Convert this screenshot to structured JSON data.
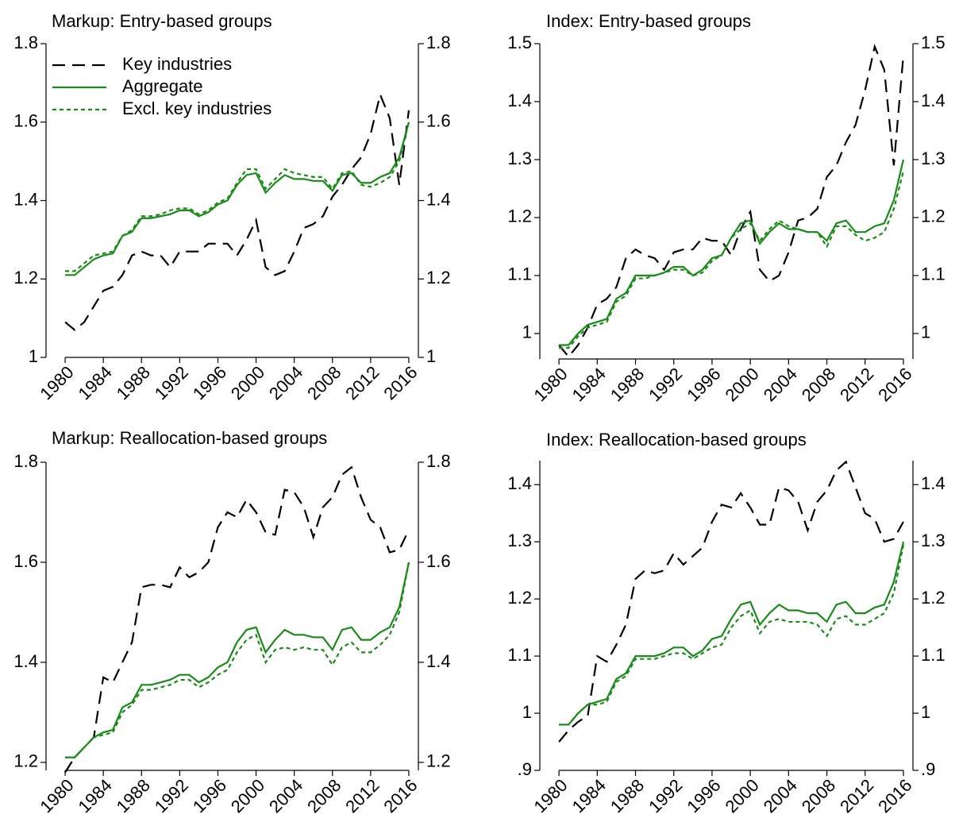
{
  "chart_data": [
    {
      "type": "line",
      "title": "Markup: Entry-based groups",
      "x": [
        1980,
        1981,
        1982,
        1983,
        1984,
        1985,
        1986,
        1987,
        1988,
        1989,
        1990,
        1991,
        1992,
        1993,
        1994,
        1995,
        1996,
        1997,
        1998,
        1999,
        2000,
        2001,
        2002,
        2003,
        2004,
        2005,
        2006,
        2007,
        2008,
        2009,
        2010,
        2011,
        2012,
        2013,
        2014,
        2015,
        2016
      ],
      "xlim": [
        1978,
        2017
      ],
      "xticks": [
        1980,
        1984,
        1988,
        1992,
        1996,
        2000,
        2004,
        2008,
        2012,
        2016
      ],
      "ylim": [
        1,
        1.8
      ],
      "yticks": [
        1,
        1.2,
        1.4,
        1.6,
        1.8
      ],
      "y2lim": [
        1,
        1.8
      ],
      "y2ticks": [
        1,
        1.2,
        1.4,
        1.6,
        1.8
      ],
      "legend": "upper left",
      "series": [
        {
          "name": "Key industries",
          "color": "#000000",
          "line_style": "long-dash",
          "values": [
            1.09,
            1.07,
            1.09,
            1.13,
            1.17,
            1.18,
            1.21,
            1.26,
            1.27,
            1.26,
            1.26,
            1.23,
            1.27,
            1.27,
            1.27,
            1.29,
            1.29,
            1.29,
            1.26,
            1.3,
            1.35,
            1.23,
            1.21,
            1.22,
            1.27,
            1.33,
            1.34,
            1.36,
            1.41,
            1.44,
            1.48,
            1.51,
            1.57,
            1.67,
            1.61,
            1.44,
            1.63
          ]
        },
        {
          "name": "Aggregate",
          "color": "#1a8a1a",
          "line_style": "solid",
          "values": [
            1.21,
            1.21,
            1.23,
            1.25,
            1.26,
            1.265,
            1.31,
            1.32,
            1.355,
            1.355,
            1.36,
            1.365,
            1.375,
            1.375,
            1.36,
            1.37,
            1.39,
            1.4,
            1.44,
            1.465,
            1.47,
            1.42,
            1.445,
            1.465,
            1.455,
            1.455,
            1.45,
            1.45,
            1.425,
            1.465,
            1.47,
            1.445,
            1.445,
            1.46,
            1.47,
            1.51,
            1.6
          ]
        },
        {
          "name": "Excl. key industries",
          "color": "#1a8a1a",
          "line_style": "short-dash",
          "values": [
            1.22,
            1.22,
            1.24,
            1.26,
            1.265,
            1.27,
            1.31,
            1.325,
            1.36,
            1.36,
            1.365,
            1.375,
            1.38,
            1.38,
            1.365,
            1.375,
            1.395,
            1.405,
            1.445,
            1.48,
            1.48,
            1.43,
            1.455,
            1.48,
            1.47,
            1.465,
            1.46,
            1.46,
            1.43,
            1.47,
            1.475,
            1.44,
            1.435,
            1.445,
            1.46,
            1.5,
            1.6
          ]
        }
      ]
    },
    {
      "type": "line",
      "title": "Index: Entry-based groups",
      "x": [
        1980,
        1981,
        1982,
        1983,
        1984,
        1985,
        1986,
        1987,
        1988,
        1989,
        1990,
        1991,
        1992,
        1993,
        1994,
        1995,
        1996,
        1997,
        1998,
        1999,
        2000,
        2001,
        2002,
        2003,
        2004,
        2005,
        2006,
        2007,
        2008,
        2009,
        2010,
        2011,
        2012,
        2013,
        2014,
        2015,
        2016
      ],
      "xlim": [
        1978,
        2017
      ],
      "xticks": [
        1980,
        1984,
        1988,
        1992,
        1996,
        2000,
        2004,
        2008,
        2012,
        2016
      ],
      "ylim": [
        0.956,
        1.5
      ],
      "yticks": [
        1,
        1.1,
        1.2,
        1.3,
        1.4,
        1.5
      ],
      "y2lim": [
        0.956,
        1.5
      ],
      "y2ticks": [
        1,
        1.1,
        1.2,
        1.3,
        1.4,
        1.5
      ],
      "series": [
        {
          "color": "#000000",
          "line_style": "long-dash",
          "values": [
            0.98,
            0.96,
            0.98,
            1.01,
            1.05,
            1.06,
            1.08,
            1.13,
            1.145,
            1.135,
            1.13,
            1.11,
            1.14,
            1.145,
            1.145,
            1.165,
            1.16,
            1.16,
            1.135,
            1.18,
            1.21,
            1.11,
            1.09,
            1.1,
            1.14,
            1.195,
            1.2,
            1.215,
            1.27,
            1.29,
            1.33,
            1.36,
            1.42,
            1.495,
            1.455,
            1.29,
            1.48
          ]
        },
        {
          "color": "#1a8a1a",
          "line_style": "solid",
          "values": [
            0.98,
            0.98,
            1.0,
            1.015,
            1.02,
            1.025,
            1.06,
            1.07,
            1.1,
            1.1,
            1.1,
            1.105,
            1.115,
            1.115,
            1.1,
            1.11,
            1.13,
            1.135,
            1.165,
            1.19,
            1.195,
            1.155,
            1.175,
            1.19,
            1.18,
            1.18,
            1.175,
            1.175,
            1.16,
            1.19,
            1.195,
            1.175,
            1.175,
            1.185,
            1.19,
            1.23,
            1.3
          ]
        },
        {
          "color": "#1a8a1a",
          "line_style": "short-dash",
          "values": [
            0.975,
            0.975,
            0.995,
            1.01,
            1.015,
            1.02,
            1.055,
            1.065,
            1.095,
            1.095,
            1.1,
            1.105,
            1.11,
            1.11,
            1.1,
            1.105,
            1.125,
            1.135,
            1.165,
            1.18,
            1.19,
            1.16,
            1.18,
            1.195,
            1.185,
            1.18,
            1.175,
            1.175,
            1.15,
            1.185,
            1.185,
            1.17,
            1.16,
            1.165,
            1.175,
            1.215,
            1.28
          ]
        }
      ]
    },
    {
      "type": "line",
      "title": "Markup: Reallocation-based groups",
      "x": [
        1980,
        1981,
        1982,
        1983,
        1984,
        1985,
        1986,
        1987,
        1988,
        1989,
        1990,
        1991,
        1992,
        1993,
        1994,
        1995,
        1996,
        1997,
        1998,
        1999,
        2000,
        2001,
        2002,
        2003,
        2004,
        2005,
        2006,
        2007,
        2008,
        2009,
        2010,
        2011,
        2012,
        2013,
        2014,
        2015,
        2016
      ],
      "xlim": [
        1978,
        2017
      ],
      "xticks": [
        1980,
        1984,
        1988,
        1992,
        1996,
        2000,
        2004,
        2008,
        2012,
        2016
      ],
      "ylim": [
        1.184,
        1.8
      ],
      "yticks": [
        1.2,
        1.4,
        1.6,
        1.8
      ],
      "y2lim": [
        1.184,
        1.8
      ],
      "y2ticks": [
        1.2,
        1.4,
        1.6,
        1.8
      ],
      "series": [
        {
          "color": "#000000",
          "line_style": "long-dash",
          "values": [
            1.18,
            1.21,
            1.23,
            1.25,
            1.37,
            1.36,
            1.4,
            1.44,
            1.55,
            1.555,
            1.555,
            1.55,
            1.59,
            1.57,
            1.58,
            1.6,
            1.67,
            1.7,
            1.69,
            1.725,
            1.7,
            1.66,
            1.655,
            1.745,
            1.74,
            1.71,
            1.65,
            1.71,
            1.73,
            1.775,
            1.79,
            1.73,
            1.685,
            1.67,
            1.62,
            1.625,
            1.665
          ]
        },
        {
          "color": "#1a8a1a",
          "line_style": "solid",
          "values": [
            1.21,
            1.21,
            1.23,
            1.25,
            1.26,
            1.265,
            1.31,
            1.32,
            1.355,
            1.355,
            1.36,
            1.365,
            1.375,
            1.375,
            1.36,
            1.37,
            1.39,
            1.4,
            1.44,
            1.465,
            1.47,
            1.42,
            1.445,
            1.465,
            1.455,
            1.455,
            1.45,
            1.45,
            1.425,
            1.465,
            1.47,
            1.445,
            1.445,
            1.46,
            1.47,
            1.51,
            1.6
          ]
        },
        {
          "color": "#1a8a1a",
          "line_style": "short-dash",
          "values": [
            1.21,
            1.21,
            1.23,
            1.25,
            1.255,
            1.26,
            1.3,
            1.315,
            1.345,
            1.345,
            1.35,
            1.355,
            1.365,
            1.365,
            1.35,
            1.36,
            1.375,
            1.385,
            1.42,
            1.445,
            1.455,
            1.4,
            1.425,
            1.43,
            1.425,
            1.43,
            1.425,
            1.425,
            1.395,
            1.43,
            1.44,
            1.42,
            1.42,
            1.435,
            1.455,
            1.5,
            1.6
          ]
        }
      ]
    },
    {
      "type": "line",
      "title": "Index: Reallocation-based groups",
      "x": [
        1980,
        1981,
        1982,
        1983,
        1984,
        1985,
        1986,
        1987,
        1988,
        1989,
        1990,
        1991,
        1992,
        1993,
        1994,
        1995,
        1996,
        1997,
        1998,
        1999,
        2000,
        2001,
        2002,
        2003,
        2004,
        2005,
        2006,
        2007,
        2008,
        2009,
        2010,
        2011,
        2012,
        2013,
        2014,
        2015,
        2016
      ],
      "xlim": [
        1978,
        2017
      ],
      "xticks": [
        1980,
        1984,
        1988,
        1992,
        1996,
        2000,
        2004,
        2008,
        2012,
        2016
      ],
      "ylim": [
        0.9,
        1.442
      ],
      "yticks": [
        {
          "value": 0.9,
          "label": ".9"
        },
        1,
        1.1,
        1.2,
        1.3,
        1.4
      ],
      "y2lim": [
        0.9,
        1.442
      ],
      "y2ticks": [
        {
          "value": 0.9,
          "label": ".9"
        },
        1,
        1.1,
        1.2,
        1.3,
        1.4
      ],
      "series": [
        {
          "color": "#000000",
          "line_style": "long-dash",
          "values": [
            0.95,
            0.97,
            0.985,
            0.995,
            1.1,
            1.09,
            1.12,
            1.155,
            1.235,
            1.25,
            1.245,
            1.25,
            1.28,
            1.26,
            1.275,
            1.29,
            1.335,
            1.365,
            1.36,
            1.385,
            1.36,
            1.33,
            1.33,
            1.395,
            1.39,
            1.37,
            1.32,
            1.37,
            1.39,
            1.425,
            1.44,
            1.395,
            1.35,
            1.34,
            1.3,
            1.305,
            1.335
          ]
        },
        {
          "color": "#1a8a1a",
          "line_style": "solid",
          "values": [
            0.98,
            0.98,
            1.0,
            1.015,
            1.02,
            1.025,
            1.06,
            1.07,
            1.1,
            1.1,
            1.1,
            1.105,
            1.115,
            1.115,
            1.1,
            1.11,
            1.13,
            1.135,
            1.165,
            1.19,
            1.195,
            1.155,
            1.175,
            1.19,
            1.18,
            1.18,
            1.175,
            1.175,
            1.16,
            1.19,
            1.195,
            1.175,
            1.175,
            1.185,
            1.19,
            1.23,
            1.3
          ]
        },
        {
          "color": "#1a8a1a",
          "line_style": "short-dash",
          "values": [
            0.98,
            0.98,
            1.0,
            1.015,
            1.015,
            1.02,
            1.055,
            1.065,
            1.095,
            1.095,
            1.095,
            1.1,
            1.105,
            1.105,
            1.095,
            1.105,
            1.115,
            1.12,
            1.15,
            1.17,
            1.18,
            1.14,
            1.16,
            1.165,
            1.16,
            1.16,
            1.16,
            1.155,
            1.135,
            1.165,
            1.17,
            1.155,
            1.155,
            1.165,
            1.175,
            1.21,
            1.295
          ]
        }
      ]
    }
  ]
}
